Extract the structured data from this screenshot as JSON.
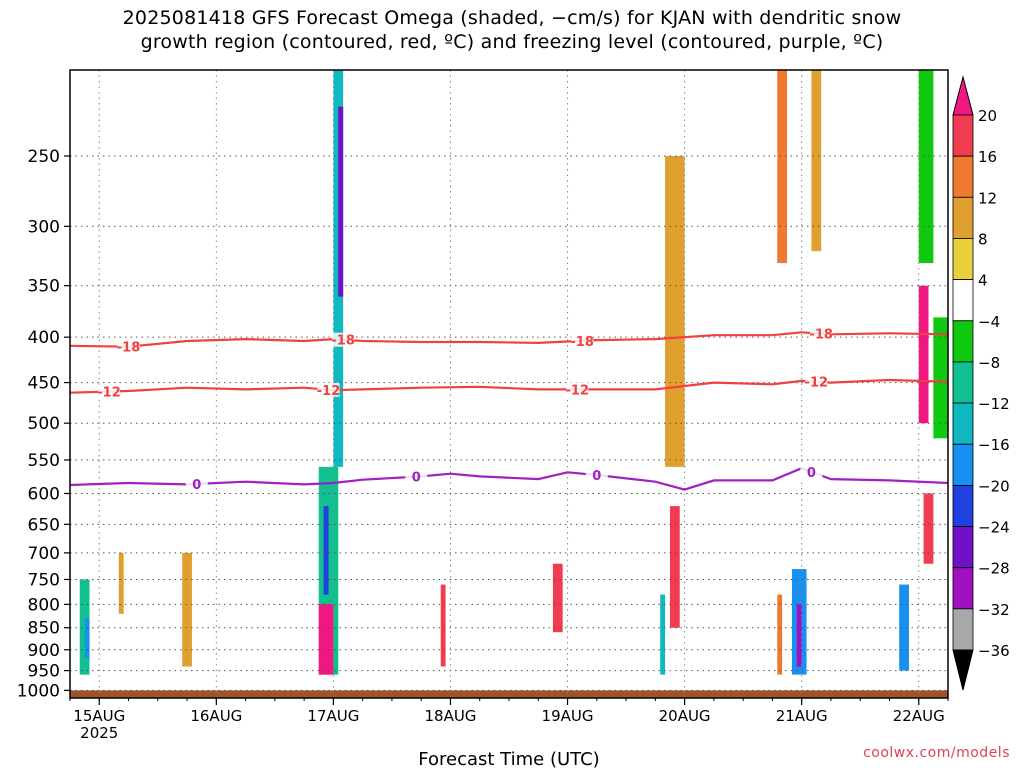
{
  "page": {
    "title_line1": "2025081418 GFS Forecast Omega (shaded, −cm/s) for KJAN with dendritic snow",
    "title_line2": "growth region (contoured, red, ºC) and freezing level (contoured, purple, ºC)",
    "credit": "coolwx.com/models"
  },
  "chart_data": {
    "type": "heatmap",
    "title": "2025081418 GFS Forecast Omega (shaded, −cm/s) for KJAN with dendritic snow growth region (contoured, red, ºC) and freezing level (contoured, purple, ºC)",
    "xlabel": "Forecast Time (UTC)",
    "ylabel": "",
    "x_ticks": [
      {
        "label": "15AUG",
        "sublabel": "2025",
        "hour": 6
      },
      {
        "label": "16AUG",
        "hour": 30
      },
      {
        "label": "17AUG",
        "hour": 54
      },
      {
        "label": "18AUG",
        "hour": 78
      },
      {
        "label": "19AUG",
        "hour": 102
      },
      {
        "label": "20AUG",
        "hour": 126
      },
      {
        "label": "21AUG",
        "hour": 150
      },
      {
        "label": "22AUG",
        "hour": 174
      }
    ],
    "xlim_hours": [
      0,
      180
    ],
    "y_scale": "log-pressure",
    "y_inverted": true,
    "ylim_hpa": [
      200,
      1020
    ],
    "y_ticks": [
      250,
      300,
      350,
      400,
      450,
      500,
      550,
      600,
      650,
      700,
      750,
      800,
      850,
      900,
      950,
      1000
    ],
    "grid": true,
    "ground_below_hpa": 1000,
    "colorbar": {
      "labels": [
        "20",
        "16",
        "12",
        "8",
        "4",
        "−4",
        "−8",
        "−12",
        "−16",
        "−20",
        "−24",
        "−28",
        "−32",
        "−36"
      ],
      "colors": [
        "#f03c50",
        "#f07830",
        "#e0a030",
        "#e8d03c",
        "#ffffff",
        "#10c810",
        "#10c090",
        "#10b8c0",
        "#1890f0",
        "#2040e0",
        "#7010c8",
        "#a010c0",
        "#a8a8a8",
        "#000000"
      ],
      "top_arrow_color": "#f01880",
      "bottom_arrow_color": "#000000"
    },
    "contours": [
      {
        "label": "-18",
        "color": "#f04040",
        "x": [
          0,
          12,
          24,
          36,
          48,
          54,
          60,
          72,
          84,
          96,
          108,
          120,
          132,
          144,
          150,
          156,
          168,
          180
        ],
        "p": [
          409,
          410,
          404,
          402,
          404,
          402,
          404,
          405,
          405,
          406,
          403,
          402,
          398,
          398,
          395,
          397,
          396,
          397
        ],
        "labels_at": [
          12,
          56,
          105,
          154
        ]
      },
      {
        "label": "-12",
        "color": "#f04040",
        "x": [
          0,
          12,
          24,
          36,
          48,
          54,
          60,
          72,
          84,
          96,
          108,
          120,
          132,
          144,
          150,
          156,
          168,
          180
        ],
        "p": [
          462,
          460,
          456,
          458,
          456,
          459,
          458,
          456,
          455,
          458,
          458,
          458,
          450,
          452,
          448,
          450,
          447,
          449
        ],
        "labels_at": [
          8,
          53,
          104,
          153
        ]
      },
      {
        "label": "0",
        "color": "#a020c0",
        "x": [
          0,
          12,
          24,
          36,
          48,
          54,
          60,
          72,
          78,
          84,
          96,
          102,
          108,
          120,
          126,
          132,
          144,
          150,
          156,
          168,
          180
        ],
        "p": [
          587,
          584,
          586,
          582,
          586,
          584,
          579,
          574,
          570,
          574,
          578,
          568,
          572,
          582,
          594,
          580,
          580,
          562,
          578,
          580,
          584
        ],
        "labels_at": [
          26,
          71,
          108,
          152
        ]
      }
    ],
    "omega_cells": [
      {
        "x0": 2,
        "x1": 4,
        "p0": 750,
        "p1": 960,
        "v": -10
      },
      {
        "x0": 3,
        "x1": 4,
        "p0": 830,
        "p1": 920,
        "v": -18
      },
      {
        "x0": 10,
        "x1": 11,
        "p0": 700,
        "p1": 820,
        "v": 8
      },
      {
        "x0": 23,
        "x1": 25,
        "p0": 700,
        "p1": 940,
        "v": 10
      },
      {
        "x0": 51,
        "x1": 55,
        "p0": 560,
        "p1": 960,
        "v": -10
      },
      {
        "x0": 51,
        "x1": 54,
        "p0": 800,
        "p1": 960,
        "v": 20
      },
      {
        "x0": 52,
        "x1": 53,
        "p0": 620,
        "p1": 780,
        "v": -22
      },
      {
        "x0": 54,
        "x1": 56,
        "p0": 200,
        "p1": 560,
        "v": -14
      },
      {
        "x0": 55,
        "x1": 56,
        "p0": 220,
        "p1": 360,
        "v": -28
      },
      {
        "x0": 76,
        "x1": 77,
        "p0": 760,
        "p1": 940,
        "v": 16
      },
      {
        "x0": 99,
        "x1": 101,
        "p0": 720,
        "p1": 860,
        "v": 16
      },
      {
        "x0": 121,
        "x1": 122,
        "p0": 780,
        "p1": 960,
        "v": -14
      },
      {
        "x0": 123,
        "x1": 125,
        "p0": 620,
        "p1": 850,
        "v": 18
      },
      {
        "x0": 122,
        "x1": 126,
        "p0": 250,
        "p1": 560,
        "v": 8
      },
      {
        "x0": 145,
        "x1": 146,
        "p0": 780,
        "p1": 960,
        "v": 14
      },
      {
        "x0": 148,
        "x1": 151,
        "p0": 730,
        "p1": 960,
        "v": -18
      },
      {
        "x0": 149,
        "x1": 150,
        "p0": 800,
        "p1": 940,
        "v": -30
      },
      {
        "x0": 145,
        "x1": 147,
        "p0": 200,
        "p1": 330,
        "v": 14
      },
      {
        "x0": 152,
        "x1": 154,
        "p0": 200,
        "p1": 320,
        "v": 10
      },
      {
        "x0": 170,
        "x1": 172,
        "p0": 760,
        "p1": 950,
        "v": -18
      },
      {
        "x0": 174,
        "x1": 176,
        "p0": 350,
        "p1": 500,
        "v": 22
      },
      {
        "x0": 175,
        "x1": 177,
        "p0": 600,
        "p1": 720,
        "v": 16
      },
      {
        "x0": 174,
        "x1": 177,
        "p0": 200,
        "p1": 330,
        "v": -8
      },
      {
        "x0": 177,
        "x1": 180,
        "p0": 380,
        "p1": 520,
        "v": -8
      }
    ]
  }
}
